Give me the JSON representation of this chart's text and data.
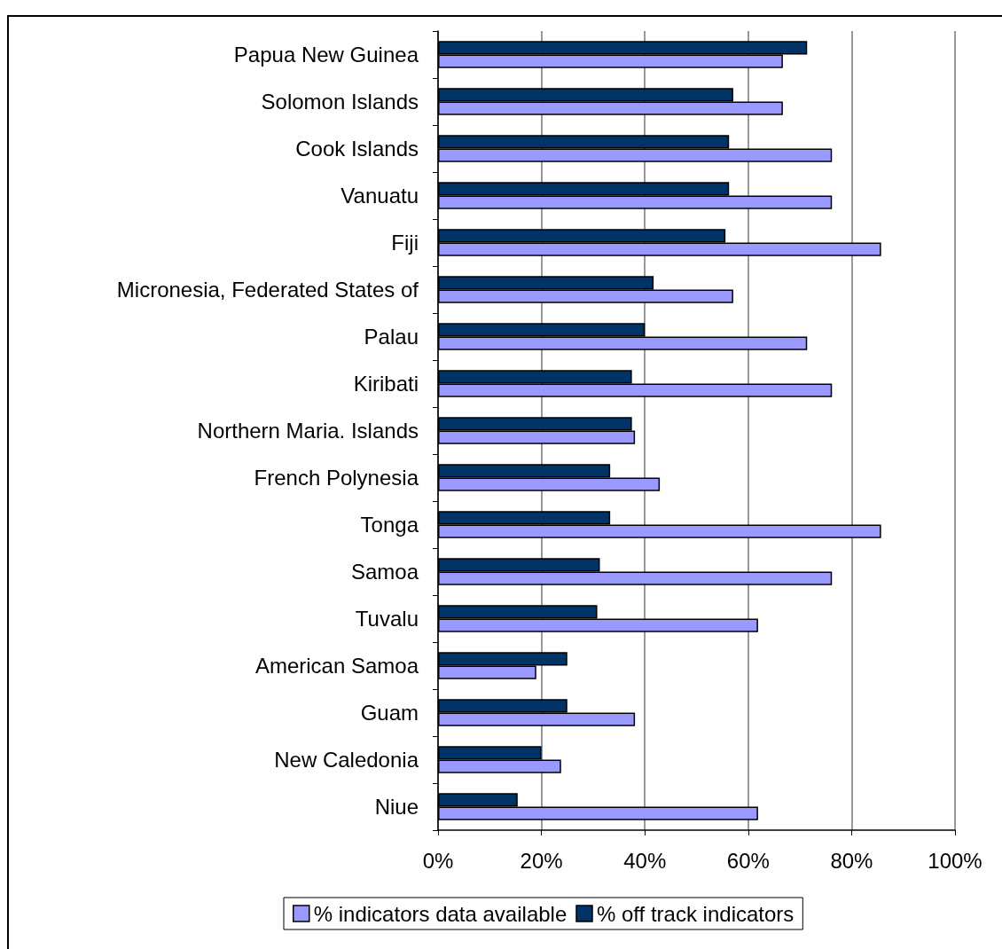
{
  "chart_data": {
    "type": "bar",
    "orientation": "horizontal",
    "categories": [
      "Papua New Guinea",
      "Solomon Islands",
      "Cook Islands",
      "Vanuatu",
      "Fiji",
      "Micronesia, Federated States of",
      "Palau",
      "Kiribati",
      "Northern Maria. Islands",
      "French Polynesia",
      "Tonga",
      "Samoa",
      "Tuvalu",
      "American Samoa",
      "Guam",
      "New Caledonia",
      "Niue"
    ],
    "series": [
      {
        "name": "% indicators data available",
        "color": "#9999ff",
        "values": [
          66.7,
          66.7,
          76.2,
          76.2,
          85.7,
          57.1,
          71.4,
          76.2,
          38.1,
          42.9,
          85.7,
          76.2,
          61.9,
          19.0,
          38.1,
          23.8,
          61.9
        ]
      },
      {
        "name": "% off track indicators",
        "color": "#003366",
        "values": [
          71.4,
          57.1,
          56.3,
          56.3,
          55.6,
          41.7,
          40.0,
          37.5,
          37.5,
          33.3,
          33.3,
          31.3,
          30.8,
          25.0,
          25.0,
          20.0,
          15.4
        ]
      }
    ],
    "xlim": [
      0,
      100
    ],
    "xticks": [
      {
        "value": 0,
        "label": "0%"
      },
      {
        "value": 20,
        "label": "20%"
      },
      {
        "value": 40,
        "label": "40%"
      },
      {
        "value": 60,
        "label": "60%"
      },
      {
        "value": 80,
        "label": "80%"
      },
      {
        "value": 100,
        "label": "100%"
      }
    ],
    "grid": "x",
    "legend": "bottom"
  }
}
